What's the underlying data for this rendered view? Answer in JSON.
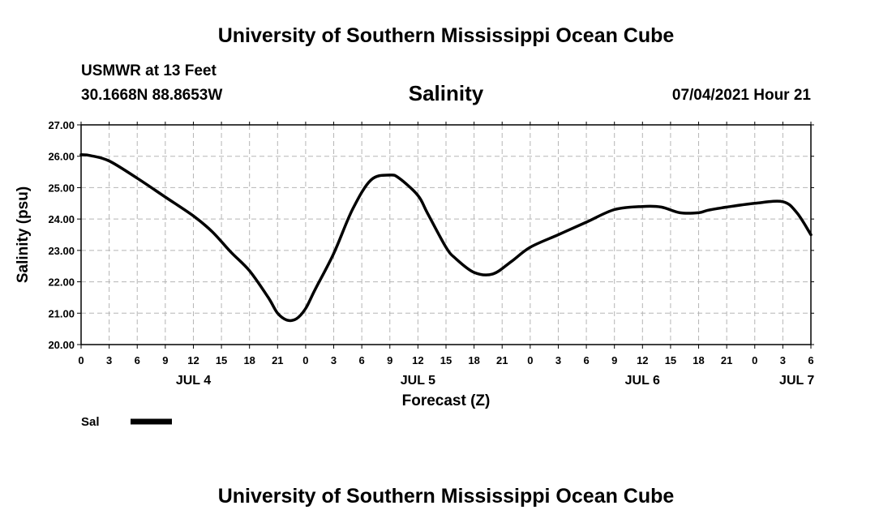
{
  "header": {
    "title": "University of Southern Mississippi Ocean Cube",
    "station": "USMWR at 13 Feet",
    "coordinates": "30.1668N  88.8653W",
    "variable": "Salinity",
    "valid_time": "07/04/2021 Hour 21"
  },
  "footer": {
    "title": "University of Southern Mississippi Ocean Cube"
  },
  "chart_data": {
    "type": "line",
    "xlabel": "Forecast (Z)",
    "ylabel": "Salinity (psu)",
    "ylim": [
      20,
      27
    ],
    "yticks": [
      "20.00",
      "21.00",
      "22.00",
      "23.00",
      "24.00",
      "25.00",
      "26.00",
      "27.00"
    ],
    "xlim_hours": [
      0,
      78
    ],
    "xtick_labels": [
      "0",
      "3",
      "6",
      "9",
      "12",
      "15",
      "18",
      "21",
      "0",
      "3",
      "6",
      "9",
      "12",
      "15",
      "18",
      "21",
      "0",
      "3",
      "6",
      "9",
      "12",
      "15",
      "18",
      "21",
      "0",
      "3",
      "6"
    ],
    "date_labels": [
      {
        "label": "JUL 4",
        "hour": 12
      },
      {
        "label": "JUL 5",
        "hour": 36
      },
      {
        "label": "JUL 6",
        "hour": 60
      },
      {
        "label": "JUL 7",
        "hour": 76.5
      }
    ],
    "grid": true,
    "legend": "bottom-left",
    "series": [
      {
        "name": "Sal",
        "color": "#000000",
        "hours": [
          0,
          1,
          3,
          6,
          9,
          12,
          14,
          16,
          18,
          20,
          21,
          22,
          23,
          24,
          25,
          27,
          29,
          31,
          33,
          34,
          36,
          37,
          39,
          40,
          42,
          44,
          46,
          48,
          51,
          54,
          57,
          60,
          62,
          64,
          66,
          67,
          69,
          72,
          75,
          76.5,
          78
        ],
        "values": [
          26.05,
          26.02,
          25.85,
          25.3,
          24.7,
          24.1,
          23.6,
          22.95,
          22.35,
          21.5,
          21.0,
          20.78,
          20.82,
          21.15,
          21.75,
          22.9,
          24.3,
          25.25,
          25.4,
          25.3,
          24.75,
          24.2,
          23.1,
          22.75,
          22.3,
          22.25,
          22.65,
          23.1,
          23.5,
          23.9,
          24.3,
          24.4,
          24.38,
          24.2,
          24.2,
          24.28,
          24.38,
          24.5,
          24.55,
          24.2,
          23.5
        ]
      }
    ]
  }
}
